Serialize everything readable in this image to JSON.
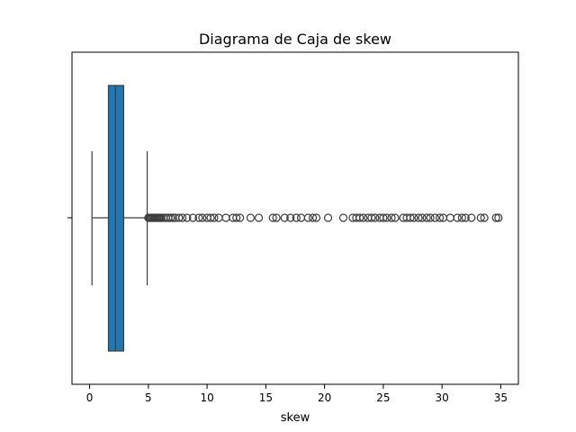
{
  "chart_data": {
    "type": "boxplot",
    "orientation": "horizontal",
    "title": "Diagrama de Caja de skew",
    "xlabel": "skew",
    "ylabel": "",
    "xlim": [
      -1.5,
      36.5
    ],
    "xticks": [
      0,
      5,
      10,
      15,
      20,
      25,
      30,
      35
    ],
    "xtick_labels": [
      "0",
      "5",
      "10",
      "15",
      "20",
      "25",
      "30",
      "35"
    ],
    "grid": false,
    "colors": {
      "box_fill": "#1f77b4",
      "line": "#3d3d3d",
      "flier_edge": "#3d3d3d"
    },
    "box": {
      "whisker_low": 0.2,
      "q1": 1.6,
      "median": 2.2,
      "q3": 2.9,
      "whisker_high": 4.9
    },
    "outliers": [
      5.0,
      5.1,
      5.2,
      5.3,
      5.4,
      5.5,
      5.6,
      5.7,
      5.8,
      5.9,
      6.0,
      6.1,
      6.3,
      6.5,
      6.7,
      6.9,
      7.1,
      7.3,
      7.6,
      7.9,
      8.3,
      8.8,
      9.3,
      9.6,
      10.0,
      10.3,
      10.6,
      11.0,
      11.6,
      12.2,
      12.5,
      12.8,
      13.7,
      14.4,
      15.6,
      15.9,
      16.6,
      17.1,
      17.6,
      18.0,
      18.6,
      19.0,
      19.3,
      20.3,
      21.6,
      22.4,
      22.7,
      23.0,
      23.3,
      23.7,
      24.0,
      24.3,
      24.7,
      25.0,
      25.3,
      25.7,
      26.0,
      26.7,
      27.0,
      27.3,
      27.6,
      28.0,
      28.3,
      28.7,
      29.0,
      29.4,
      29.8,
      30.1,
      30.7,
      31.3,
      31.7,
      32.0,
      32.5,
      33.3,
      33.6,
      34.6,
      34.8
    ]
  }
}
